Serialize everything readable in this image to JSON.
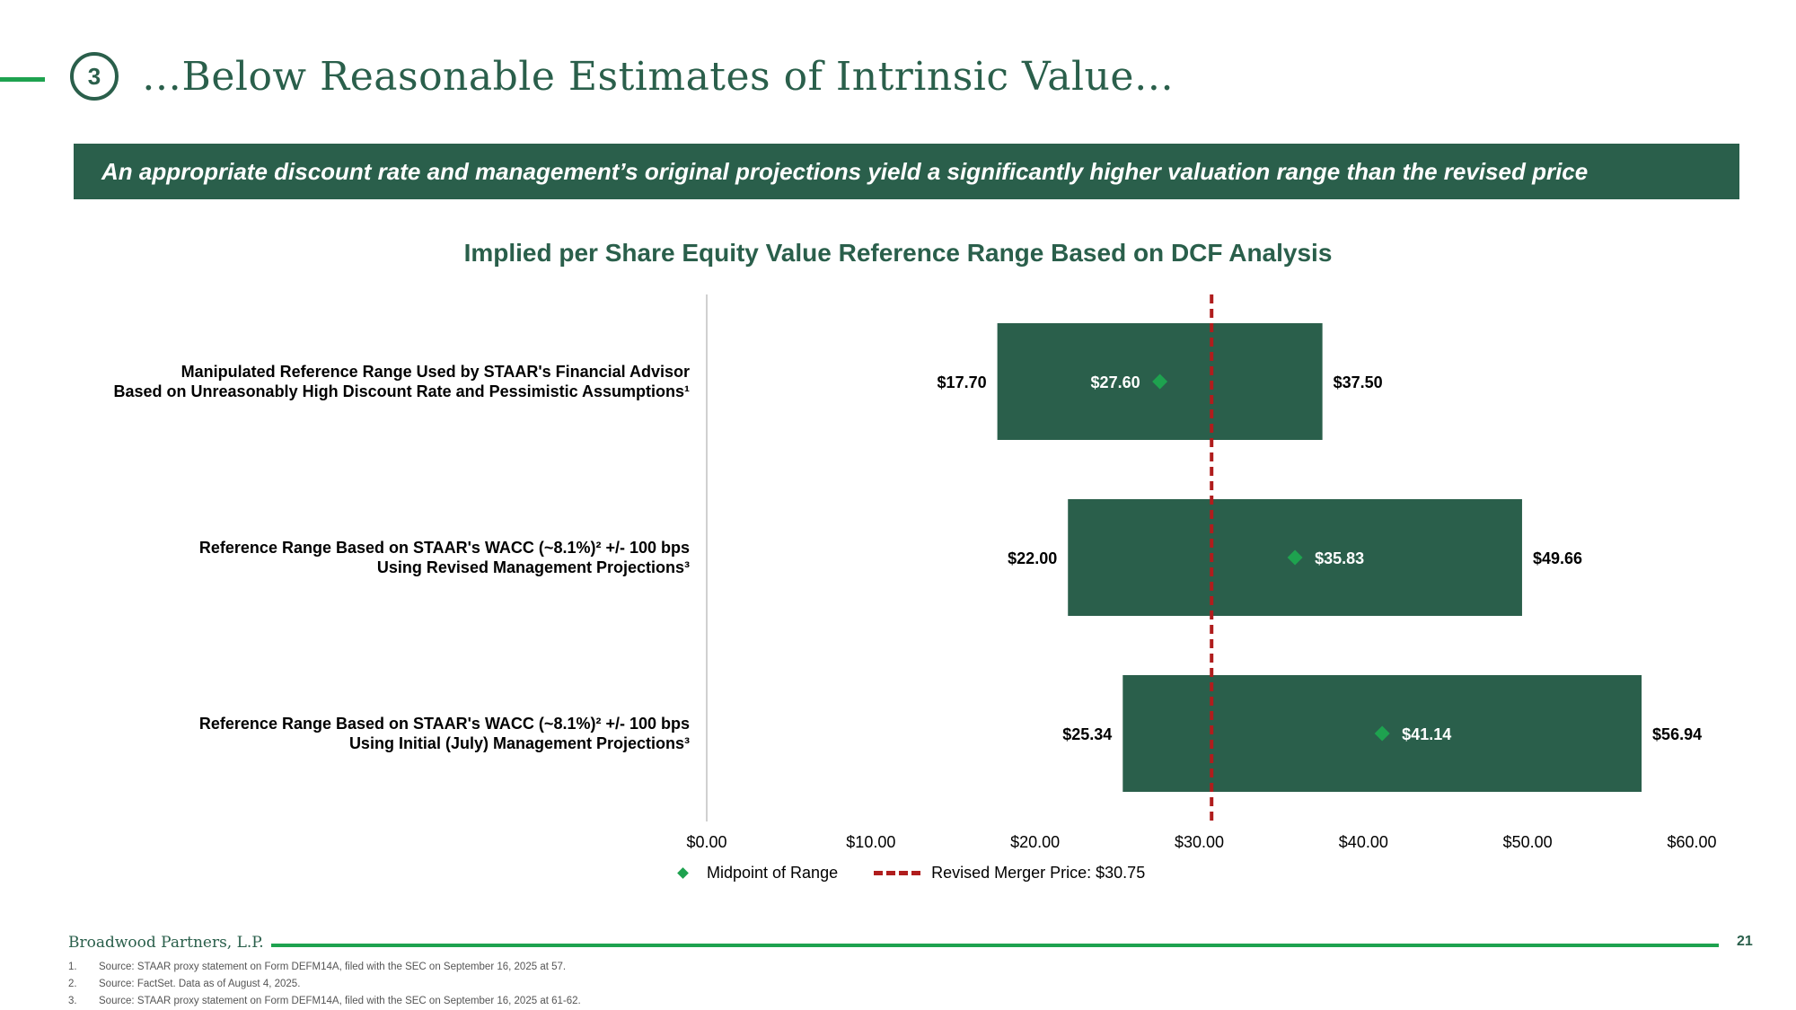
{
  "header": {
    "section_number": "3",
    "title": "…Below Reasonable Estimates of Intrinsic Value…"
  },
  "banner": {
    "text": "An appropriate discount rate and management’s original projections yield a significantly higher valuation range than the revised price"
  },
  "categories": [
    {
      "line1": "Manipulated Reference Range Used by STAAR's Financial Advisor",
      "line2": "Based on Unreasonably High Discount Rate and Pessimistic Assumptions¹"
    },
    {
      "line1": "Reference Range Based on STAAR's WACC (~8.1%)² +/- 100 bps",
      "line2": "Using Revised Management Projections³"
    },
    {
      "line1": "Reference Range Based on STAAR's WACC (~8.1%)² +/- 100 bps",
      "line2": "Using Initial (July) Management Projections³"
    }
  ],
  "chart_data": {
    "type": "bar",
    "subtype": "floating-range",
    "title": "Implied per Share Equity Value Reference Range Based on DCF Analysis",
    "xlim": [
      0,
      60
    ],
    "ticks": [
      0,
      10,
      20,
      30,
      40,
      50,
      60
    ],
    "tick_labels": [
      "$0.00",
      "$10.00",
      "$20.00",
      "$30.00",
      "$40.00",
      "$50.00",
      "$60.00"
    ],
    "series": [
      {
        "low": 17.7,
        "high": 37.5,
        "mid": 27.6,
        "low_label": "$17.70",
        "high_label": "$37.50",
        "mid_label": "$27.60"
      },
      {
        "low": 22.0,
        "high": 49.66,
        "mid": 35.83,
        "low_label": "$22.00",
        "high_label": "$49.66",
        "mid_label": "$35.83"
      },
      {
        "low": 25.34,
        "high": 56.94,
        "mid": 41.14,
        "low_label": "$25.34",
        "high_label": "$56.94",
        "mid_label": "$41.14"
      }
    ],
    "reference_line": {
      "value": 30.75
    },
    "legend": {
      "midpoint": "Midpoint of Range",
      "reference": "Revised Merger Price: $30.75"
    },
    "colors": {
      "bar": "#2a5f4b",
      "midpoint": "#1ea24f",
      "reference": "#b01d1d",
      "axis": "#d0d0d0"
    }
  },
  "footer": {
    "company": "Broadwood Partners, L.P.",
    "page": "21",
    "notes": [
      {
        "num": "1.",
        "text": "Source: STAAR proxy statement on Form DEFM14A, filed with the SEC on September 16, 2025 at 57."
      },
      {
        "num": "2.",
        "text": "Source: FactSet. Data as of August 4, 2025."
      },
      {
        "num": "3.",
        "text": "Source: STAAR proxy statement on Form DEFM14A, filed with the SEC on September 16, 2025 at 61-62."
      }
    ]
  }
}
